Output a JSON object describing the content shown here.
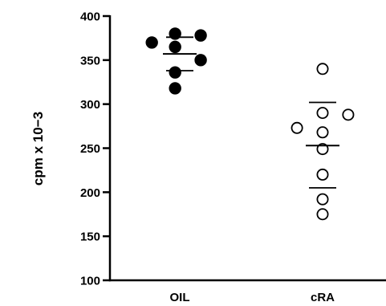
{
  "chart_data": {
    "type": "scatter",
    "ylabel": "cpm x 10−3",
    "xlabel": "",
    "title": "",
    "ylim": [
      100,
      400
    ],
    "yticks": [
      100,
      150,
      200,
      250,
      300,
      350,
      400
    ],
    "ytick_labels": [
      "100",
      "150",
      "200",
      "250",
      "300",
      "350",
      "400"
    ],
    "categories": [
      "OIL",
      "cRA"
    ],
    "grid": false,
    "legend": "none",
    "series": [
      {
        "category": "OIL",
        "marker": "filled-circle",
        "color": "#000000",
        "points": [
          {
            "offset": -0.6,
            "y": 370
          },
          {
            "offset": -0.1,
            "y": 380
          },
          {
            "offset": -0.1,
            "y": 365
          },
          {
            "offset": 0.45,
            "y": 378
          },
          {
            "offset": 0.45,
            "y": 350
          },
          {
            "offset": -0.1,
            "y": 336
          },
          {
            "offset": -0.1,
            "y": 318
          }
        ],
        "mean": 357,
        "error_lines": [
          376,
          338
        ]
      },
      {
        "category": "cRA",
        "marker": "open-circle",
        "color": "#000000",
        "points": [
          {
            "offset": 0.0,
            "y": 340
          },
          {
            "offset": 0.0,
            "y": 290
          },
          {
            "offset": -0.55,
            "y": 273
          },
          {
            "offset": 0.55,
            "y": 288
          },
          {
            "offset": 0.0,
            "y": 268
          },
          {
            "offset": 0.0,
            "y": 249
          },
          {
            "offset": 0.0,
            "y": 220
          },
          {
            "offset": 0.0,
            "y": 192
          },
          {
            "offset": 0.0,
            "y": 175
          }
        ],
        "mean": 253,
        "error_lines": [
          302,
          205
        ]
      }
    ]
  }
}
